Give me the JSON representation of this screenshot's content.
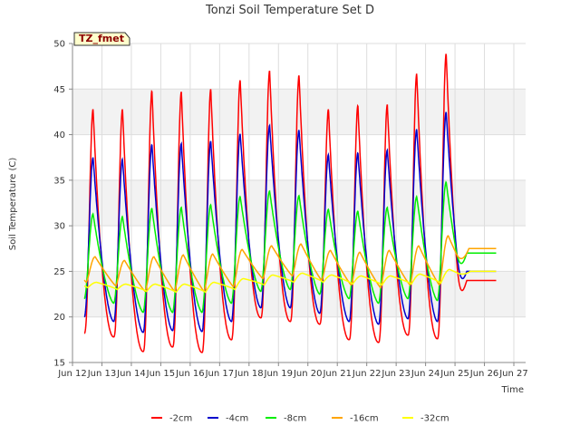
{
  "chart_data": {
    "type": "line",
    "title": "Tonzi Soil Temperature Set D",
    "xlabel": "Time",
    "ylabel": "Soil Temperature (C)",
    "ylim": [
      15,
      50
    ],
    "yticks": [
      15,
      20,
      25,
      30,
      35,
      40,
      45,
      50
    ],
    "xlim": [
      11.6,
      27.0
    ],
    "xticks": [
      {
        "v": 11.6,
        "label": "Jun 12"
      },
      {
        "v": 12.6,
        "label": "Jun 13"
      },
      {
        "v": 13.6,
        "label": "Jun 14"
      },
      {
        "v": 14.6,
        "label": "Jun 15"
      },
      {
        "v": 15.6,
        "label": "Jun 16"
      },
      {
        "v": 16.6,
        "label": "Jun 17"
      },
      {
        "v": 17.6,
        "label": "Jun 18"
      },
      {
        "v": 18.6,
        "label": "Jun 19"
      },
      {
        "v": 19.6,
        "label": "Jun 20"
      },
      {
        "v": 20.6,
        "label": "Jun 21"
      },
      {
        "v": 21.6,
        "label": "Jun 22"
      },
      {
        "v": 22.6,
        "label": "Jun 23"
      },
      {
        "v": 23.6,
        "label": "Jun 24"
      },
      {
        "v": 24.6,
        "label": "Jun 25"
      },
      {
        "v": 25.6,
        "label": "Jun 26"
      },
      {
        "v": 26.6,
        "label": "Jun 27"
      }
    ],
    "grid": true,
    "legend_position": "bottom",
    "annotation": "TZ_fmet",
    "x_start": 12.0,
    "x_end": 26.0,
    "series": [
      {
        "name": "-2cm",
        "color": "#ff0000",
        "peaks": [
          44.0,
          42.8,
          42.8,
          44.8,
          44.7,
          45.0,
          46.0,
          47.0,
          46.5,
          42.8,
          43.2,
          43.3,
          46.7,
          48.9
        ],
        "troughs": [
          21.0,
          18.2,
          17.8,
          16.2,
          16.7,
          16.1,
          17.5,
          19.9,
          19.5,
          19.2,
          17.5,
          17.2,
          18.0,
          17.6,
          19.9
        ],
        "end_value": 24.0
      },
      {
        "name": "-4cm",
        "color": "#0000cc",
        "peaks": [
          38.5,
          37.5,
          37.3,
          38.9,
          39.0,
          39.3,
          40.1,
          41.0,
          40.5,
          37.8,
          38.0,
          38.3,
          40.6,
          42.5
        ],
        "troughs": [
          22.6,
          20.0,
          19.5,
          18.3,
          18.5,
          18.4,
          19.5,
          21.0,
          21.0,
          20.4,
          19.5,
          19.2,
          19.8,
          19.5,
          21.5
        ],
        "end_value": 25.0
      },
      {
        "name": "-8cm",
        "color": "#00ee00",
        "peaks": [
          32.0,
          31.3,
          31.0,
          31.9,
          32.0,
          32.3,
          33.2,
          33.8,
          33.3,
          31.8,
          31.6,
          32.0,
          33.2,
          34.8
        ],
        "troughs": [
          24.5,
          22.0,
          21.5,
          20.5,
          20.5,
          20.5,
          21.5,
          22.8,
          23.0,
          22.5,
          22.0,
          21.5,
          22.0,
          21.8,
          23.0
        ],
        "end_value": 27.0
      },
      {
        "name": "-16cm",
        "color": "#ffa500",
        "peaks": [
          27.0,
          26.6,
          26.2,
          26.6,
          26.8,
          26.9,
          27.4,
          27.8,
          28.0,
          27.3,
          27.1,
          27.3,
          27.8,
          28.9
        ],
        "troughs": [
          25.5,
          23.8,
          23.4,
          22.8,
          22.8,
          22.8,
          23.3,
          24.2,
          24.5,
          24.0,
          23.5,
          23.2,
          23.5,
          23.5,
          24.3
        ],
        "end_value": 27.5
      },
      {
        "name": "-32cm",
        "color": "#ffff00",
        "peaks": [
          24.0,
          23.8,
          23.6,
          23.6,
          23.6,
          23.8,
          24.2,
          24.6,
          24.8,
          24.6,
          24.5,
          24.5,
          24.7,
          25.2
        ],
        "troughs": [
          23.8,
          23.2,
          23.0,
          22.8,
          22.7,
          22.7,
          23.0,
          23.5,
          23.8,
          23.8,
          23.6,
          23.5,
          23.6,
          23.7,
          24.0
        ],
        "end_value": 25.0
      }
    ]
  }
}
